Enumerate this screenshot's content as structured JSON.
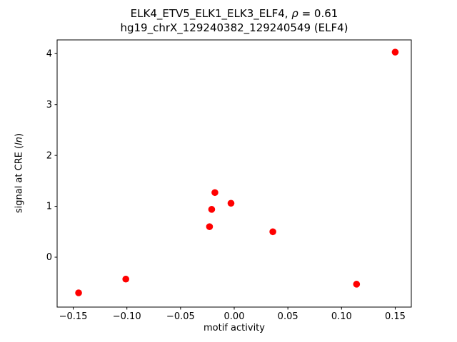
{
  "figure": {
    "title_line1_pre": "ELK4_ETV5_ELK1_ELK3_ELF4, ",
    "title_rho": "ρ",
    "title_line1_post": " = 0.61",
    "title_line2": "hg19_chrX_129240382_129240549 (ELF4)"
  },
  "chart_data": {
    "type": "scatter",
    "title": "ELK4_ETV5_ELK1_ELK3_ELF4, ρ = 0.61\nhg19_chrX_129240382_129240549 (ELF4)",
    "rho": 0.61,
    "xlabel": "motif activity",
    "ylabel_pre": "signal at CRE (",
    "ylabel_italic": "ln",
    "ylabel_post": ")",
    "marker_color": "#ff0000",
    "marker_radius_px": 4.8,
    "grid": false,
    "legend": "none",
    "xlim": [
      -0.165,
      0.165
    ],
    "ylim": [
      -0.98,
      4.27
    ],
    "xticks": [
      -0.15,
      -0.1,
      -0.05,
      0.0,
      0.05,
      0.1,
      0.15
    ],
    "xtick_labels": [
      "−0.15",
      "−0.10",
      "−0.05",
      "0.00",
      "0.05",
      "0.10",
      "0.15"
    ],
    "yticks": [
      0,
      1,
      2,
      3,
      4
    ],
    "ytick_labels": [
      "0",
      "1",
      "2",
      "3",
      "4"
    ],
    "points": [
      [
        -0.145,
        -0.7
      ],
      [
        -0.101,
        -0.43
      ],
      [
        -0.023,
        0.6
      ],
      [
        -0.021,
        0.94
      ],
      [
        -0.018,
        1.27
      ],
      [
        -0.003,
        1.06
      ],
      [
        0.036,
        0.5
      ],
      [
        0.114,
        -0.53
      ],
      [
        0.15,
        4.03
      ]
    ]
  }
}
